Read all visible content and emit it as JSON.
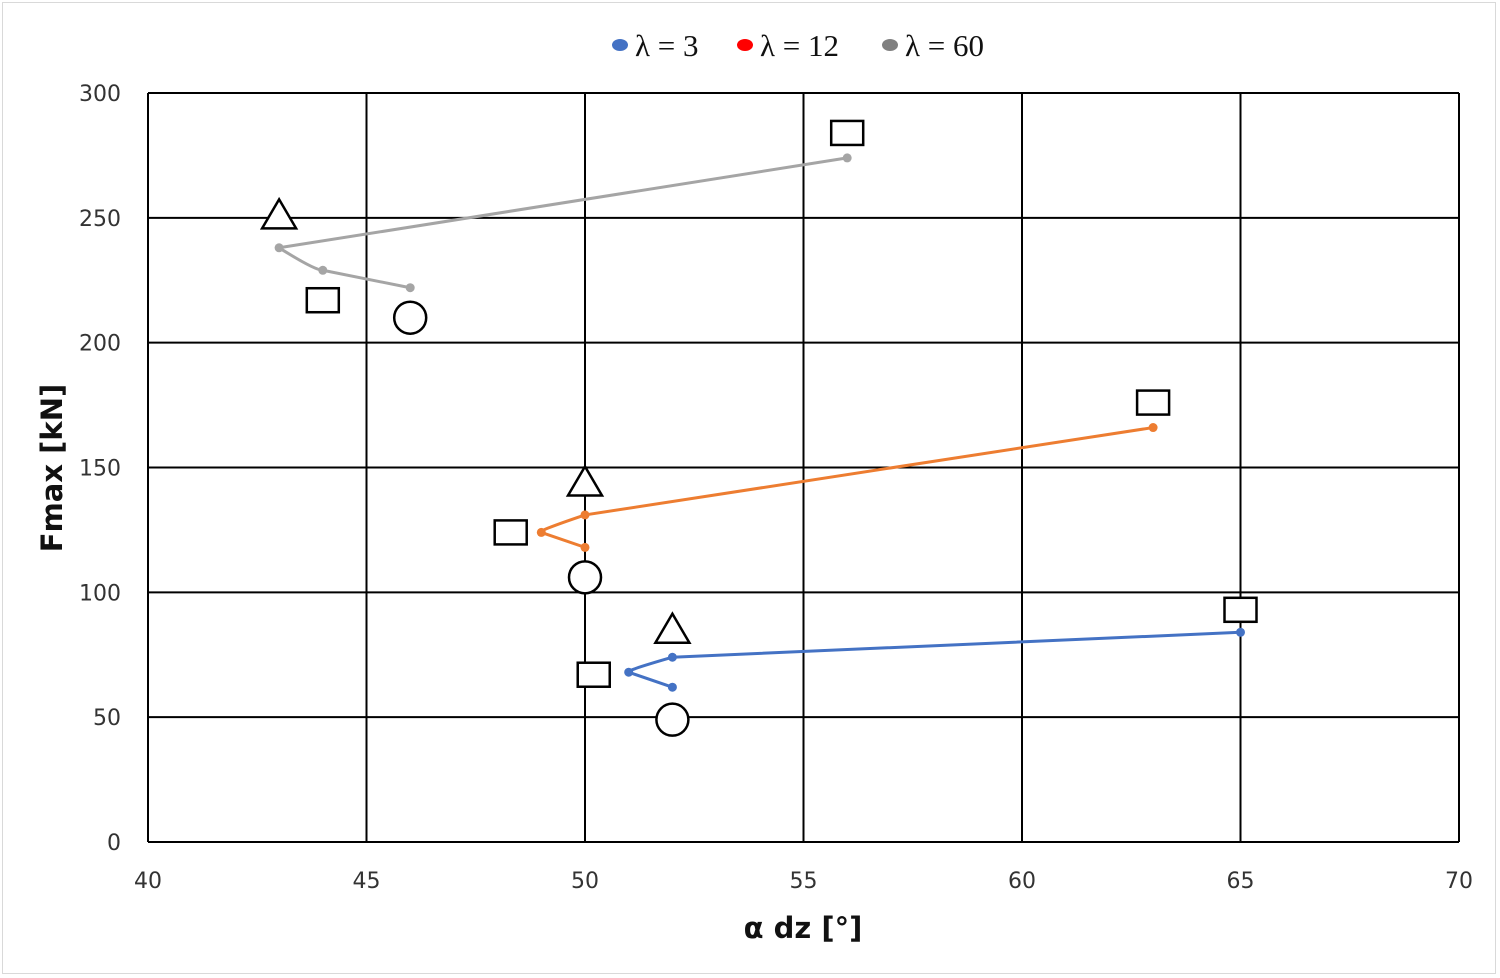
{
  "chart_data": {
    "type": "line",
    "title": "",
    "xlabel": "α dz [°]",
    "ylabel": "Fmax [kN]",
    "xlim": [
      40,
      70
    ],
    "ylim": [
      0,
      300
    ],
    "xticks": [
      40,
      45,
      50,
      55,
      60,
      65,
      70
    ],
    "yticks": [
      0,
      50,
      100,
      150,
      200,
      250,
      300
    ],
    "grid": true,
    "legend_position": "top",
    "legend": [
      {
        "label": "λ = 3",
        "color": "#4472c4"
      },
      {
        "label": "λ = 12",
        "color": "#ff0000"
      },
      {
        "label": "λ = 60",
        "color": "#808080"
      }
    ],
    "series": [
      {
        "name": "λ = 3",
        "color": "#4472c4",
        "points": [
          [
            65,
            84
          ],
          [
            52,
            74
          ],
          [
            51,
            68
          ],
          [
            52,
            62
          ]
        ],
        "markers": [
          {
            "shape": "square",
            "x": 65,
            "y": 93
          },
          {
            "shape": "triangle",
            "x": 52,
            "y": 85
          },
          {
            "shape": "square",
            "x": 50.2,
            "y": 67
          },
          {
            "shape": "circle",
            "x": 52,
            "y": 49
          }
        ]
      },
      {
        "name": "λ = 12",
        "color": "#ed7d31",
        "points": [
          [
            63,
            166
          ],
          [
            50,
            131
          ],
          [
            49,
            124
          ],
          [
            50,
            118
          ]
        ],
        "markers": [
          {
            "shape": "square",
            "x": 63,
            "y": 176
          },
          {
            "shape": "triangle",
            "x": 50,
            "y": 144
          },
          {
            "shape": "square",
            "x": 48.3,
            "y": 124
          },
          {
            "shape": "circle",
            "x": 50,
            "y": 106
          }
        ]
      },
      {
        "name": "λ = 60",
        "color": "#a5a5a5",
        "points": [
          [
            56,
            274
          ],
          [
            43,
            238
          ],
          [
            44,
            229
          ],
          [
            46,
            222
          ]
        ],
        "markers": [
          {
            "shape": "square",
            "x": 56,
            "y": 284
          },
          {
            "shape": "triangle",
            "x": 43,
            "y": 251
          },
          {
            "shape": "square",
            "x": 44,
            "y": 217
          },
          {
            "shape": "circle",
            "x": 46,
            "y": 210
          }
        ]
      }
    ]
  }
}
